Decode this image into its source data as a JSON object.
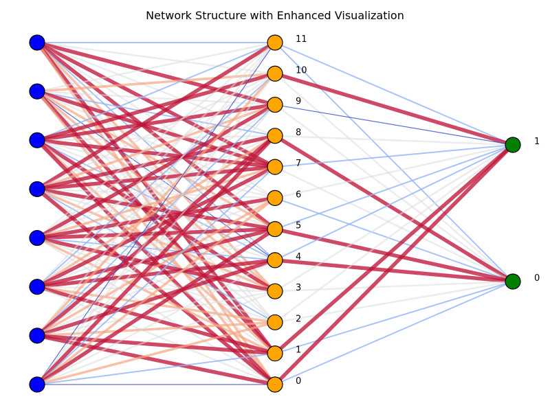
{
  "title": "Network Structure with Enhanced Visualization",
  "colors": {
    "input_node": "#0000ff",
    "hidden_node": "#ffa500",
    "output_node": "#007f00",
    "node_edge": "#000000",
    "edge_strong_positive": "#c0163a",
    "edge_positive": "#f4a582",
    "edge_weak": "#dddddd",
    "edge_negative": "#92b4f2",
    "edge_strong_negative": "#3b4cc0"
  },
  "layers": [
    {
      "name": "input",
      "nodes": [
        {
          "label": ""
        },
        {
          "label": ""
        },
        {
          "label": ""
        },
        {
          "label": ""
        },
        {
          "label": ""
        },
        {
          "label": ""
        },
        {
          "label": ""
        },
        {
          "label": ""
        }
      ]
    },
    {
      "name": "hidden",
      "nodes": [
        {
          "label": "11"
        },
        {
          "label": "10"
        },
        {
          "label": "9"
        },
        {
          "label": "8"
        },
        {
          "label": "7"
        },
        {
          "label": "6"
        },
        {
          "label": "5"
        },
        {
          "label": "4"
        },
        {
          "label": "3"
        },
        {
          "label": "2"
        },
        {
          "label": "1"
        },
        {
          "label": "0"
        }
      ]
    },
    {
      "name": "output",
      "nodes": [
        {
          "label": "1"
        },
        {
          "label": "0"
        }
      ]
    }
  ],
  "edges_input_hidden": [
    [
      -0.6,
      0.3,
      0.9,
      0.4,
      0.8,
      0.2,
      0.9,
      -0.3,
      0.7,
      0.3,
      0.8,
      0.6
    ],
    [
      0.4,
      0.5,
      0.3,
      -0.4,
      0.9,
      0.3,
      0.5,
      -0.8,
      0.6,
      0.4,
      0.9,
      0.5
    ],
    [
      -0.5,
      0.9,
      0.9,
      0.4,
      0.9,
      0.3,
      0.4,
      -0.5,
      0.9,
      0.3,
      0.5,
      0.8
    ],
    [
      0.9,
      0.4,
      0.5,
      0.9,
      0.9,
      0.3,
      0.9,
      0.3,
      0.6,
      -0.4,
      0.4,
      0.9
    ],
    [
      0.4,
      0.3,
      0.9,
      0.4,
      0.5,
      0.9,
      0.9,
      -0.4,
      0.9,
      0.3,
      0.5,
      0.3
    ],
    [
      0.3,
      -0.5,
      0.4,
      0.5,
      0.9,
      0.4,
      0.9,
      0.9,
      0.4,
      0.5,
      0.9,
      0.3
    ],
    [
      0.4,
      0.5,
      -0.3,
      0.9,
      0.4,
      0.5,
      0.4,
      0.9,
      0.3,
      0.5,
      0.9,
      0.9
    ],
    [
      -0.7,
      0.4,
      0.3,
      0.9,
      -0.4,
      0.5,
      0.9,
      0.4,
      0.3,
      0.5,
      -0.3,
      -0.8
    ]
  ],
  "edges_hidden_output": [
    [
      -0.5,
      -0.4
    ],
    [
      0.9,
      0.3
    ],
    [
      -0.9,
      0.3
    ],
    [
      0.3,
      0.9
    ],
    [
      -0.3,
      0.3
    ],
    [
      0.4,
      -0.3
    ],
    [
      -0.3,
      0.9
    ],
    [
      -0.3,
      1.0
    ],
    [
      0.3,
      0.3
    ],
    [
      0.3,
      0.3
    ],
    [
      0.9,
      -0.6
    ],
    [
      1.0,
      -0.2
    ]
  ]
}
